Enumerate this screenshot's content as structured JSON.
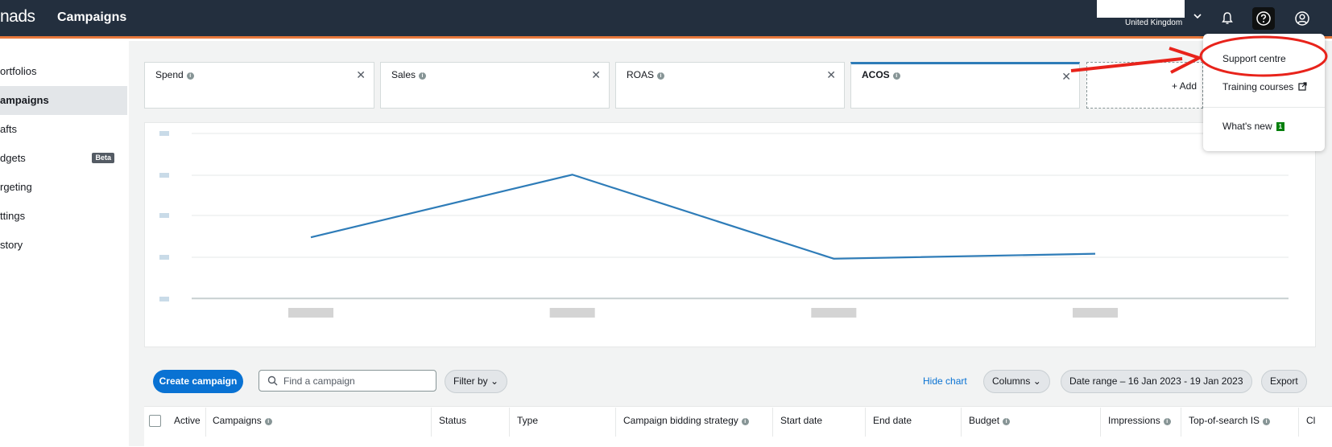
{
  "topbar": {
    "brand": "nads",
    "page_title": "Campaigns",
    "marketplace": "United Kingdom",
    "icons": [
      "bell-icon",
      "help-icon",
      "user-icon"
    ]
  },
  "sidebar": {
    "items": [
      {
        "label": "ortfolios"
      },
      {
        "label": "ampaigns",
        "active": true
      },
      {
        "label": "afts"
      },
      {
        "label": "dgets",
        "badge": "Beta"
      },
      {
        "label": "rgeting"
      },
      {
        "label": "ttings"
      },
      {
        "label": "story"
      }
    ]
  },
  "metrics": [
    {
      "label": "Spend"
    },
    {
      "label": "Sales"
    },
    {
      "label": "ROAS"
    },
    {
      "label": "ACOS",
      "selected": true
    }
  ],
  "add_metric_label": "+ Add",
  "chart_data": {
    "type": "line",
    "series": [
      {
        "values": [
          0.63,
          0.25,
          0.76,
          0.73
        ]
      }
    ],
    "color": "#2e7cb8",
    "grid": true,
    "note_ticks_blurred": true
  },
  "toolbar": {
    "create_label": "Create campaign",
    "search_placeholder": "Find a campaign",
    "filter_label": "Filter by",
    "hide_chart_label": "Hide chart",
    "columns_label": "Columns",
    "date_range_label": "Date range – 16 Jan 2023 - 19 Jan 2023",
    "export_label": "Export"
  },
  "table": {
    "columns": [
      "Active",
      "Campaigns",
      "Status",
      "Type",
      "Campaign bidding strategy",
      "Start date",
      "End date",
      "Budget",
      "Impressions",
      "Top-of-search IS",
      "Cl"
    ]
  },
  "help_menu": {
    "items": [
      {
        "label": "Support centre"
      },
      {
        "label": "Training courses"
      },
      {
        "label": "What's new",
        "badge": "1"
      }
    ]
  },
  "colors": {
    "topbar": "#232f3e",
    "accent": "#e8783c",
    "primary": "#0972d3",
    "annotation": "#e8231b"
  }
}
